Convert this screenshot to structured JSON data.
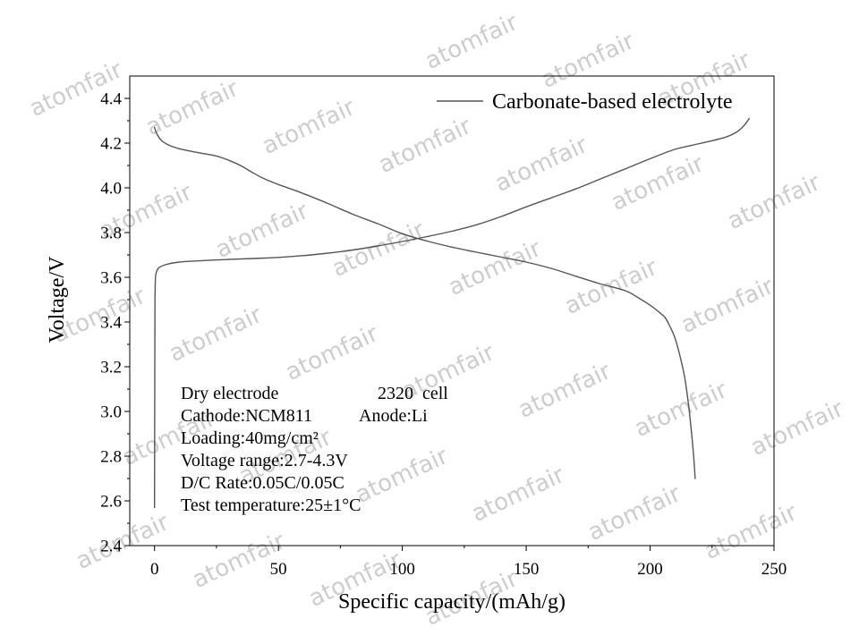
{
  "watermark": "atomfair",
  "chart_data": {
    "type": "line",
    "xlabel": "Specific capacity/(mAh/g)",
    "ylabel": "Voltage/V",
    "xlim": [
      -10,
      250
    ],
    "ylim": [
      2.4,
      4.5
    ],
    "xticks": [
      0,
      50,
      100,
      150,
      200,
      250
    ],
    "xtick_labels": [
      "0",
      "50",
      "100",
      "150",
      "200",
      "250"
    ],
    "yticks": [
      2.4,
      2.6,
      2.8,
      3.0,
      3.2,
      3.4,
      3.6,
      3.8,
      4.0,
      4.2,
      4.4
    ],
    "ytick_labels": [
      "2.4",
      "2.6",
      "2.8",
      "3.0",
      "3.2",
      "3.4",
      "3.6",
      "3.8",
      "4.0",
      "4.2",
      "4.4"
    ],
    "minor_ticks": true,
    "grid": false,
    "legend": {
      "position": "top-right"
    },
    "series": [
      {
        "name": "Carbonate-based electrolyte",
        "color": "#555555",
        "curves": [
          {
            "x": [
              0,
              0.1,
              0.2,
              0.4,
              1,
              2,
              5,
              10,
              20,
              30,
              40,
              50,
              60,
              70,
              80,
              90,
              100,
              110,
              120,
              130,
              140,
              150,
              160,
              170,
              180,
              190,
              200,
              210,
              220,
              230,
              235,
              238,
              240
            ],
            "y": [
              2.57,
              3.2,
              3.5,
              3.6,
              3.63,
              3.645,
              3.658,
              3.668,
              3.675,
              3.68,
              3.684,
              3.689,
              3.697,
              3.708,
              3.722,
              3.74,
              3.76,
              3.782,
              3.806,
              3.835,
              3.872,
              3.915,
              3.955,
              3.995,
              4.04,
              4.085,
              4.13,
              4.172,
              4.198,
              4.225,
              4.25,
              4.28,
              4.31
            ]
          },
          {
            "x": [
              0,
              1,
              3,
              6,
              10,
              15,
              20,
              25,
              30,
              35,
              40,
              45,
              50,
              60,
              70,
              80,
              90,
              100,
              110,
              120,
              130,
              140,
              150,
              160,
              170,
              180,
              190,
              195,
              200,
              203,
              206,
              208,
              210,
              212,
              214,
              215.5,
              216.5,
              217.5,
              218.2
            ],
            "y": [
              4.27,
              4.24,
              4.21,
              4.19,
              4.175,
              4.163,
              4.153,
              4.142,
              4.123,
              4.098,
              4.065,
              4.037,
              4.015,
              3.975,
              3.93,
              3.882,
              3.84,
              3.795,
              3.762,
              3.735,
              3.712,
              3.69,
              3.668,
              3.64,
              3.605,
              3.57,
              3.54,
              3.51,
              3.475,
              3.45,
              3.42,
              3.38,
              3.33,
              3.25,
              3.15,
              3.03,
              2.93,
              2.81,
              2.7
            ]
          }
        ]
      }
    ],
    "annotations": [
      "Dry electrode",
      "2320  cell",
      "Cathode:NCM811",
      "Anode:Li",
      "Loading:40mg/cm²",
      "Voltage range:2.7-4.3V",
      "D/C Rate:0.05C/0.05C",
      "Test temperature:25±1°C"
    ]
  }
}
